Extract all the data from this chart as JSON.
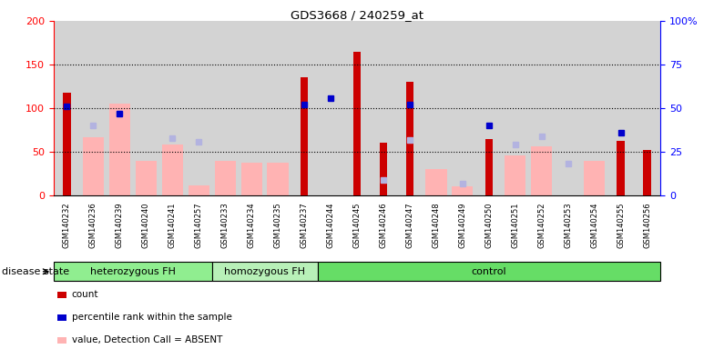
{
  "title": "GDS3668 / 240259_at",
  "samples": [
    "GSM140232",
    "GSM140236",
    "GSM140239",
    "GSM140240",
    "GSM140241",
    "GSM140257",
    "GSM140233",
    "GSM140234",
    "GSM140235",
    "GSM140237",
    "GSM140244",
    "GSM140245",
    "GSM140246",
    "GSM140247",
    "GSM140248",
    "GSM140249",
    "GSM140250",
    "GSM140251",
    "GSM140252",
    "GSM140253",
    "GSM140254",
    "GSM140255",
    "GSM140256"
  ],
  "count": [
    118,
    0,
    0,
    0,
    0,
    0,
    0,
    0,
    0,
    135,
    0,
    165,
    60,
    130,
    0,
    0,
    65,
    0,
    0,
    0,
    0,
    63,
    52
  ],
  "percentile_rank": [
    51,
    null,
    47,
    null,
    null,
    null,
    null,
    null,
    null,
    52,
    56,
    null,
    null,
    52,
    null,
    null,
    40,
    null,
    null,
    null,
    null,
    36,
    null
  ],
  "value_absent": [
    null,
    67,
    105,
    40,
    58,
    12,
    40,
    38,
    38,
    null,
    null,
    null,
    null,
    null,
    30,
    10,
    null,
    46,
    56,
    null,
    40,
    null,
    null
  ],
  "rank_absent": [
    null,
    40,
    47,
    null,
    33,
    31,
    null,
    null,
    null,
    null,
    null,
    null,
    9,
    32,
    null,
    7,
    null,
    29,
    34,
    18,
    null,
    null,
    null
  ],
  "groups": [
    {
      "label": "heterozygous FH",
      "start": 0,
      "end": 6,
      "color": "#90ee90"
    },
    {
      "label": "homozygous FH",
      "start": 6,
      "end": 10,
      "color": "#b8f0b8"
    },
    {
      "label": "control",
      "start": 10,
      "end": 23,
      "color": "#66dd66"
    }
  ],
  "left_ylim": [
    0,
    200
  ],
  "right_ylim": [
    0,
    100
  ],
  "left_yticks": [
    0,
    50,
    100,
    150,
    200
  ],
  "right_yticks": [
    0,
    25,
    50,
    75,
    100
  ],
  "right_yticklabels": [
    "0",
    "25",
    "50",
    "75",
    "100%"
  ],
  "hlines": [
    50,
    100,
    150
  ],
  "count_color": "#cc0000",
  "percentile_color": "#0000cc",
  "value_absent_color": "#ffb3b3",
  "rank_absent_color": "#b3b3e0",
  "bg_color": "#d3d3d3",
  "legend_items": [
    {
      "label": "count",
      "color": "#cc0000"
    },
    {
      "label": "percentile rank within the sample",
      "color": "#0000cc"
    },
    {
      "label": "value, Detection Call = ABSENT",
      "color": "#ffb3b3"
    },
    {
      "label": "rank, Detection Call = ABSENT",
      "color": "#b3b3e0"
    }
  ],
  "disease_label": "disease state"
}
